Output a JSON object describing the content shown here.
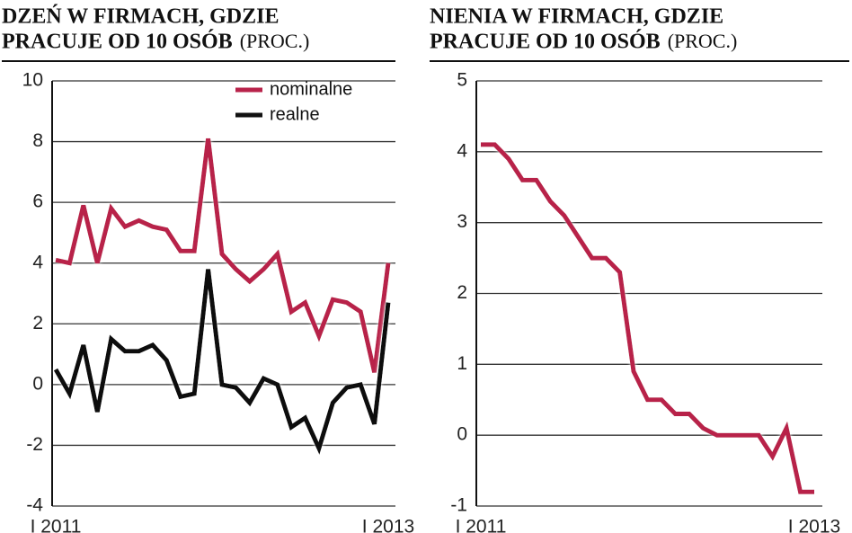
{
  "chart_data": [
    {
      "type": "line",
      "title": [
        "DZEŃ W FIRMACH, GDZIE",
        "PRACUJE OD 10 OSÓB"
      ],
      "unit": "(PROC.)",
      "categories": [
        "I 2011",
        null,
        null,
        null,
        null,
        null,
        null,
        null,
        null,
        null,
        null,
        null,
        null,
        null,
        null,
        null,
        null,
        null,
        null,
        null,
        null,
        null,
        null,
        null,
        "I 2013"
      ],
      "series": [
        {
          "name": "nominalne",
          "color": "#b8234a",
          "values": [
            4.1,
            4.0,
            5.9,
            4.0,
            5.8,
            5.2,
            5.4,
            5.2,
            5.1,
            4.4,
            4.4,
            8.1,
            4.3,
            3.8,
            3.4,
            3.8,
            4.3,
            2.4,
            2.7,
            1.6,
            2.8,
            2.7,
            2.4,
            0.4,
            4.0
          ]
        },
        {
          "name": "realne",
          "color": "#111111",
          "values": [
            0.5,
            -0.3,
            1.3,
            -0.9,
            1.5,
            1.1,
            1.1,
            1.3,
            0.8,
            -0.4,
            -0.3,
            3.8,
            0.0,
            -0.1,
            -0.6,
            0.2,
            0.0,
            -1.4,
            -1.1,
            -2.1,
            -0.6,
            -0.1,
            0.0,
            -1.3,
            2.7
          ]
        }
      ],
      "ylim": [
        -4,
        10
      ],
      "yticks": [
        -4,
        -2,
        0,
        2,
        4,
        6,
        8,
        10
      ],
      "grid": true,
      "legend": "top"
    },
    {
      "type": "line",
      "title": [
        "NIENIA W FIRMACH, GDZIE",
        "PRACUJE OD 10 OSÓB"
      ],
      "unit": "(PROC.)",
      "categories": [
        "I 2011",
        null,
        null,
        null,
        null,
        null,
        null,
        null,
        null,
        null,
        null,
        null,
        null,
        null,
        null,
        null,
        null,
        null,
        null,
        null,
        null,
        null,
        null,
        null,
        "I 2013"
      ],
      "series": [
        {
          "color": "#b8234a",
          "values": [
            4.1,
            4.1,
            3.9,
            3.6,
            3.6,
            3.3,
            3.1,
            2.8,
            2.5,
            2.5,
            2.3,
            0.9,
            0.5,
            0.5,
            0.3,
            0.3,
            0.1,
            0.0,
            0.0,
            0.0,
            0.0,
            -0.3,
            0.1,
            -0.8,
            -0.8
          ]
        }
      ],
      "ylim": [
        -1,
        5
      ],
      "yticks": [
        -1,
        0,
        1,
        2,
        3,
        4,
        5
      ],
      "grid": true
    }
  ]
}
